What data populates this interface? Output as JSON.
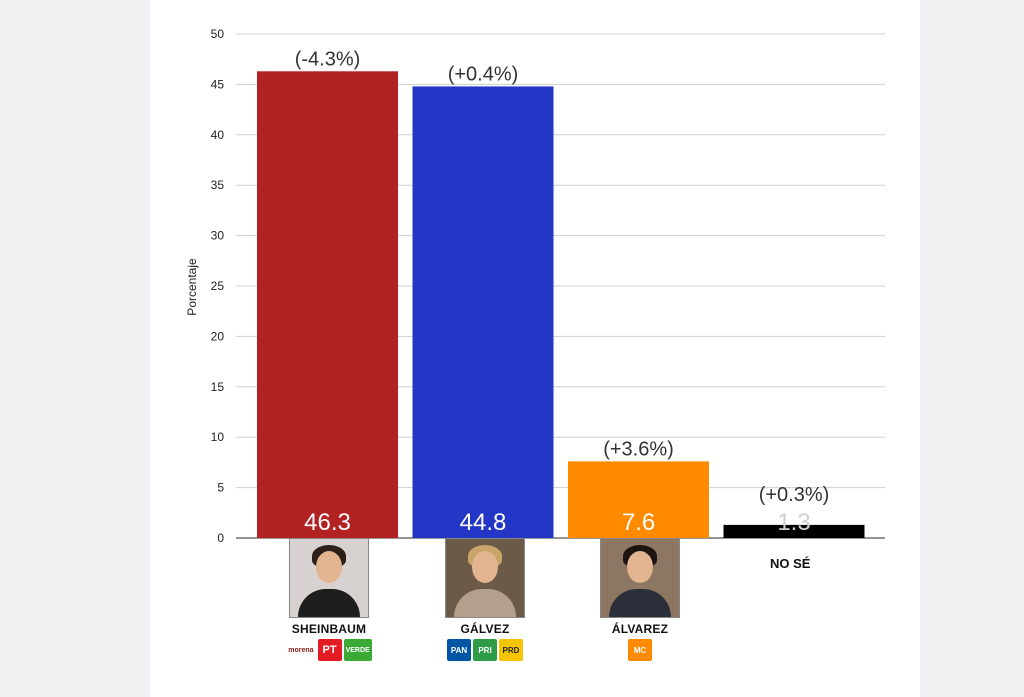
{
  "chart_data": {
    "type": "bar",
    "categories": [
      "SHEINBAUM",
      "GÁLVEZ",
      "ÁLVAREZ",
      "NO SÉ"
    ],
    "values": [
      46.3,
      44.8,
      7.6,
      1.3
    ],
    "value_labels": [
      "46.3",
      "44.8",
      "7.6",
      "1.3"
    ],
    "change_labels": [
      "(-4.3%)",
      "(+0.4%)",
      "(+3.6%)",
      "(+0.3%)"
    ],
    "colors": [
      "#b22222",
      "#2336c6",
      "#ff8a00",
      "#000000"
    ],
    "ylabel": "Porcentaje",
    "ylim": [
      0,
      50
    ],
    "yticks": [
      0,
      5,
      10,
      15,
      20,
      25,
      30,
      35,
      40,
      45,
      50
    ],
    "grid": true
  },
  "candidates": [
    {
      "name": "SHEINBAUM",
      "photo_icon": "portrait-icon",
      "logos": [
        {
          "label": "morena",
          "color": "#8b1a1a",
          "icon": "morena-logo-icon"
        },
        {
          "label": "PT",
          "color": "#e31b23",
          "icon": "pt-logo-icon"
        },
        {
          "label": "VERDE",
          "color": "#3aa935",
          "icon": "verde-logo-icon"
        }
      ]
    },
    {
      "name": "GÁLVEZ",
      "photo_icon": "portrait-icon",
      "logos": [
        {
          "label": "PAN",
          "color": "#0055a5",
          "icon": "pan-logo-icon"
        },
        {
          "label": "PRI",
          "color": "#2e9c46",
          "icon": "pri-logo-icon"
        },
        {
          "label": "PRD",
          "color": "#f5c400",
          "icon": "prd-logo-icon"
        }
      ]
    },
    {
      "name": "ÁLVAREZ",
      "photo_icon": "portrait-icon",
      "logos": [
        {
          "label": "MC",
          "color": "#ff8a00",
          "icon": "mc-logo-icon"
        }
      ]
    }
  ],
  "no_se_label": "NO SÉ"
}
